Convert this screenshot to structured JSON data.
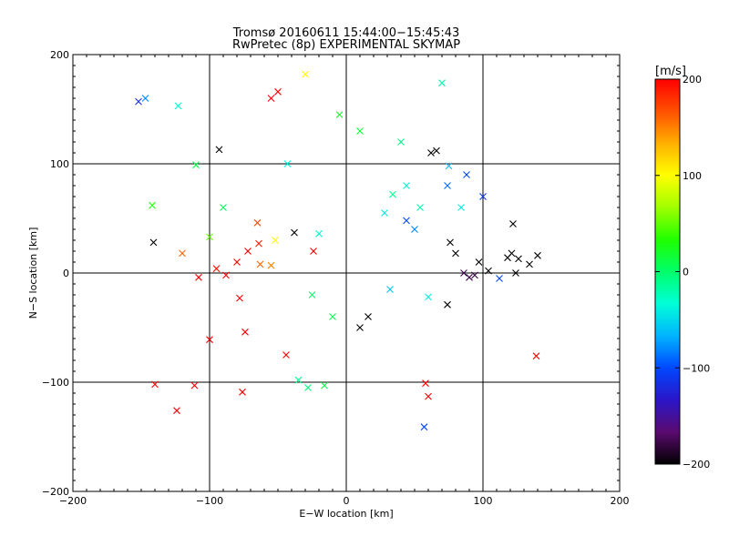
{
  "chart_data": {
    "type": "scatter",
    "title": "Tromsø 20160611 15:44:00−15:45:43",
    "subtitle": "RwPretec (8p) EXPERIMENTAL SKYMAP",
    "xlabel": "E−W location [km]",
    "ylabel": "N−S location [km]",
    "xlim": [
      -200,
      200
    ],
    "ylim": [
      -200,
      200
    ],
    "xticks": [
      {
        "value": -200,
        "label": "−200"
      },
      {
        "value": -100,
        "label": "−100"
      },
      {
        "value": 0,
        "label": "0"
      },
      {
        "value": 100,
        "label": "100"
      },
      {
        "value": 200,
        "label": "200"
      }
    ],
    "yticks": [
      {
        "value": -200,
        "label": "−200"
      },
      {
        "value": -100,
        "label": "−100"
      },
      {
        "value": 0,
        "label": "0"
      },
      {
        "value": 100,
        "label": "100"
      },
      {
        "value": 200,
        "label": "200"
      }
    ],
    "grid_lines": [
      -100,
      0,
      100
    ],
    "grid": true,
    "colorbar": {
      "label": "[m/s]",
      "range": [
        -200,
        200
      ],
      "ticks": [
        {
          "value": 200,
          "label": "200"
        },
        {
          "value": 100,
          "label": "100"
        },
        {
          "value": 0,
          "label": "0"
        },
        {
          "value": -100,
          "label": "−100"
        },
        {
          "value": -200,
          "label": "−200"
        }
      ],
      "colormap": [
        "#000000",
        "#5a0a6e",
        "#2a16c8",
        "#0048ff",
        "#00b4ff",
        "#00ffd8",
        "#00ff6a",
        "#20ff00",
        "#a0ff00",
        "#ffff00",
        "#ffb000",
        "#ff5000",
        "#ff0000"
      ]
    },
    "series": [
      {
        "marker": "cross",
        "points": [
          [
            -152,
            157,
            -120
          ],
          [
            -147,
            160,
            -80
          ],
          [
            -123,
            153,
            -30
          ],
          [
            -93,
            113,
            -200
          ],
          [
            -55,
            160,
            200
          ],
          [
            -50,
            166,
            200
          ],
          [
            -110,
            99,
            10
          ],
          [
            -142,
            62,
            30
          ],
          [
            -90,
            60,
            5
          ],
          [
            -100,
            33,
            50
          ],
          [
            -141,
            28,
            -200
          ],
          [
            -120,
            18,
            160
          ],
          [
            -108,
            -4,
            200
          ],
          [
            -95,
            4,
            190
          ],
          [
            -88,
            -2,
            200
          ],
          [
            -80,
            10,
            200
          ],
          [
            -78,
            -23,
            200
          ],
          [
            -74,
            -54,
            200
          ],
          [
            -100,
            -61,
            200
          ],
          [
            -140,
            -102,
            200
          ],
          [
            -111,
            -103,
            200
          ],
          [
            -76,
            -109,
            200
          ],
          [
            -124,
            -126,
            200
          ],
          [
            -63,
            8,
            160
          ],
          [
            -55,
            7,
            150
          ],
          [
            -52,
            30,
            100
          ],
          [
            -44,
            -75,
            200
          ],
          [
            -43,
            100,
            -40
          ],
          [
            -38,
            37,
            -200
          ],
          [
            -30,
            182,
            100
          ],
          [
            -24,
            20,
            200
          ],
          [
            -20,
            36,
            -30
          ],
          [
            -25,
            -20,
            0
          ],
          [
            -10,
            -40,
            10
          ],
          [
            10,
            -50,
            -200
          ],
          [
            16,
            -40,
            -200
          ],
          [
            28,
            55,
            -40
          ],
          [
            34,
            72,
            -10
          ],
          [
            40,
            120,
            -10
          ],
          [
            44,
            80,
            -30
          ],
          [
            54,
            60,
            -20
          ],
          [
            62,
            110,
            -200
          ],
          [
            66,
            112,
            -200
          ],
          [
            70,
            174,
            -20
          ],
          [
            75,
            98,
            -60
          ],
          [
            74,
            80,
            -90
          ],
          [
            76,
            28,
            -200
          ],
          [
            80,
            18,
            -200
          ],
          [
            84,
            60,
            -40
          ],
          [
            86,
            0,
            -180
          ],
          [
            90,
            -4,
            -180
          ],
          [
            94,
            -2,
            -180
          ],
          [
            97,
            10,
            -200
          ],
          [
            104,
            2,
            -200
          ],
          [
            112,
            -5,
            -100
          ],
          [
            118,
            14,
            -200
          ],
          [
            121,
            18,
            -200
          ],
          [
            126,
            13,
            -200
          ],
          [
            134,
            8,
            -200
          ],
          [
            140,
            16,
            -200
          ],
          [
            122,
            45,
            -200
          ],
          [
            124,
            0,
            -200
          ],
          [
            139,
            -76,
            200
          ],
          [
            74,
            -29,
            -200
          ],
          [
            58,
            -101,
            200
          ],
          [
            60,
            -113,
            200
          ],
          [
            57,
            -141,
            -100
          ],
          [
            -35,
            -98,
            -10
          ],
          [
            -28,
            -105,
            -5
          ],
          [
            -16,
            -103,
            10
          ],
          [
            44,
            48,
            -100
          ],
          [
            50,
            40,
            -80
          ],
          [
            32,
            -15,
            -60
          ],
          [
            60,
            -22,
            -40
          ],
          [
            -5,
            145,
            20
          ],
          [
            10,
            130,
            15
          ],
          [
            -64,
            27,
            190
          ],
          [
            -72,
            20,
            200
          ],
          [
            -65,
            46,
            170
          ],
          [
            88,
            90,
            -100
          ],
          [
            100,
            70,
            -110
          ]
        ]
      }
    ]
  }
}
